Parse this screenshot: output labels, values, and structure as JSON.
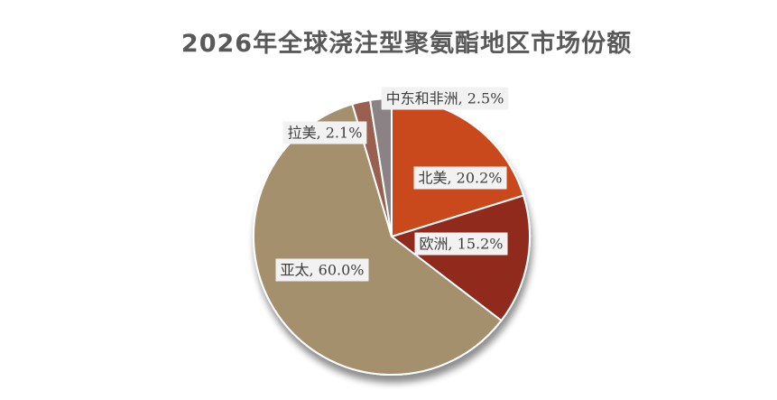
{
  "title": "2026年全球浇注型聚氨酯地区市场份额",
  "chart_data": {
    "type": "pie",
    "title": "2026年全球浇注型聚氨酯地区市场份额",
    "start_angle_deg": 0,
    "direction": "clockwise",
    "slices": [
      {
        "name": "北美",
        "value": 20.2,
        "label": "北美, 20.2%",
        "color": "#c9481a"
      },
      {
        "name": "欧洲",
        "value": 15.2,
        "label": "欧洲, 15.2%",
        "color": "#8f2a1f"
      },
      {
        "name": "亚太",
        "value": 60.0,
        "label": "亚太, 60.0%",
        "color": "#a5906e"
      },
      {
        "name": "拉美",
        "value": 2.1,
        "label": "拉美, 2.1%",
        "color": "#9a6150"
      },
      {
        "name": "中东和非洲",
        "value": 2.5,
        "label": "中东和非洲, 2.5%",
        "color": "#8a8284"
      }
    ],
    "legend": "none"
  }
}
